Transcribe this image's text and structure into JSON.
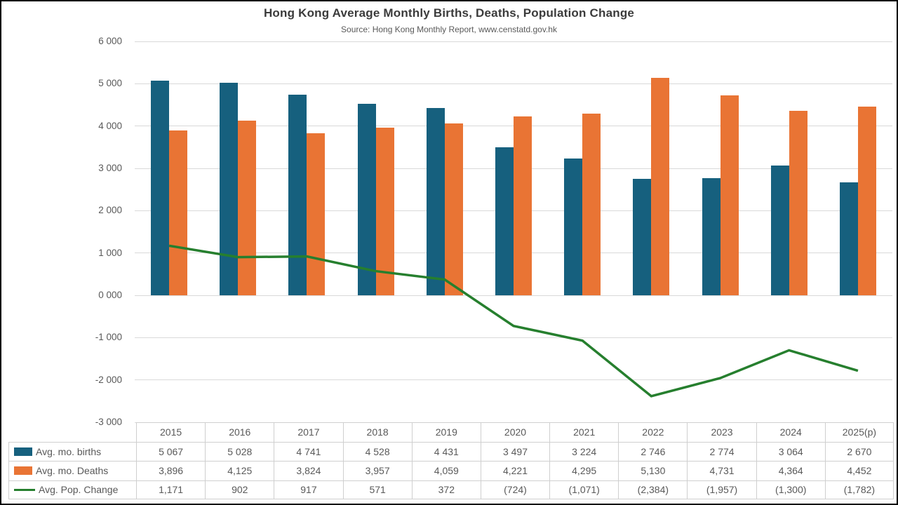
{
  "header": {
    "title": "Hong Kong Average Monthly Births, Deaths, Population Change",
    "subtitle": "Source: Hong Kong Monthly Report, www.censtatd.gov.hk"
  },
  "colors": {
    "births": "#16607E",
    "deaths": "#E97434",
    "pop_change": "#267F2E",
    "grid": "#D9D9D9",
    "table_border": "#CFCFCF",
    "text": "#595959",
    "title_text": "#3B3B3B",
    "frame_border": "#000000"
  },
  "chart_data": {
    "type": "bar",
    "title": "Hong Kong Average Monthly Births, Deaths, Population Change",
    "subtitle": "Source: Hong Kong Monthly Report, www.censtatd.gov.hk",
    "categories": [
      "2015",
      "2016",
      "2017",
      "2018",
      "2019",
      "2020",
      "2021",
      "2022",
      "2023",
      "2024",
      "2025(p)"
    ],
    "series": [
      {
        "name": "Avg. mo. births",
        "type": "bar",
        "color": "#16607E",
        "values": [
          5067,
          5028,
          4741,
          4528,
          4431,
          3497,
          3224,
          2746,
          2774,
          3064,
          2670
        ],
        "display": [
          "5 067",
          "5 028",
          "4 741",
          "4 528",
          "4 431",
          "3 497",
          "3 224",
          "2 746",
          "2 774",
          "3 064",
          "2 670"
        ]
      },
      {
        "name": "Avg. mo. Deaths",
        "type": "bar",
        "color": "#E97434",
        "values": [
          3896,
          4125,
          3824,
          3957,
          4059,
          4221,
          4295,
          5130,
          4731,
          4364,
          4452
        ],
        "display": [
          "3,896",
          "4,125",
          "3,824",
          "3,957",
          "4,059",
          "4,221",
          "4,295",
          "5,130",
          "4,731",
          "4,364",
          "4,452"
        ]
      },
      {
        "name": "Avg. Pop. Change",
        "type": "line",
        "color": "#267F2E",
        "values": [
          1171,
          902,
          917,
          571,
          372,
          -724,
          -1071,
          -2384,
          -1957,
          -1300,
          -1782
        ],
        "display": [
          "1,171",
          "902",
          "917",
          "571",
          "372",
          "(724)",
          "(1,071)",
          "(2,384)",
          "(1,957)",
          "(1,300)",
          "(1,782)"
        ]
      }
    ],
    "y_axis": {
      "min": -3000,
      "max": 6000,
      "tick_step": 1000,
      "tick_values": [
        6000,
        5000,
        4000,
        3000,
        2000,
        1000,
        0,
        -1000,
        -2000,
        -3000
      ],
      "tick_labels": [
        "6 000",
        "5 000",
        "4 000",
        "3 000",
        "2 000",
        "1 000",
        "0 000",
        "-1 000",
        "-2 000",
        "-3 000"
      ]
    },
    "grid": "horizontal",
    "legend_position": "table-left",
    "ylim": [
      -3000,
      6000
    ]
  }
}
